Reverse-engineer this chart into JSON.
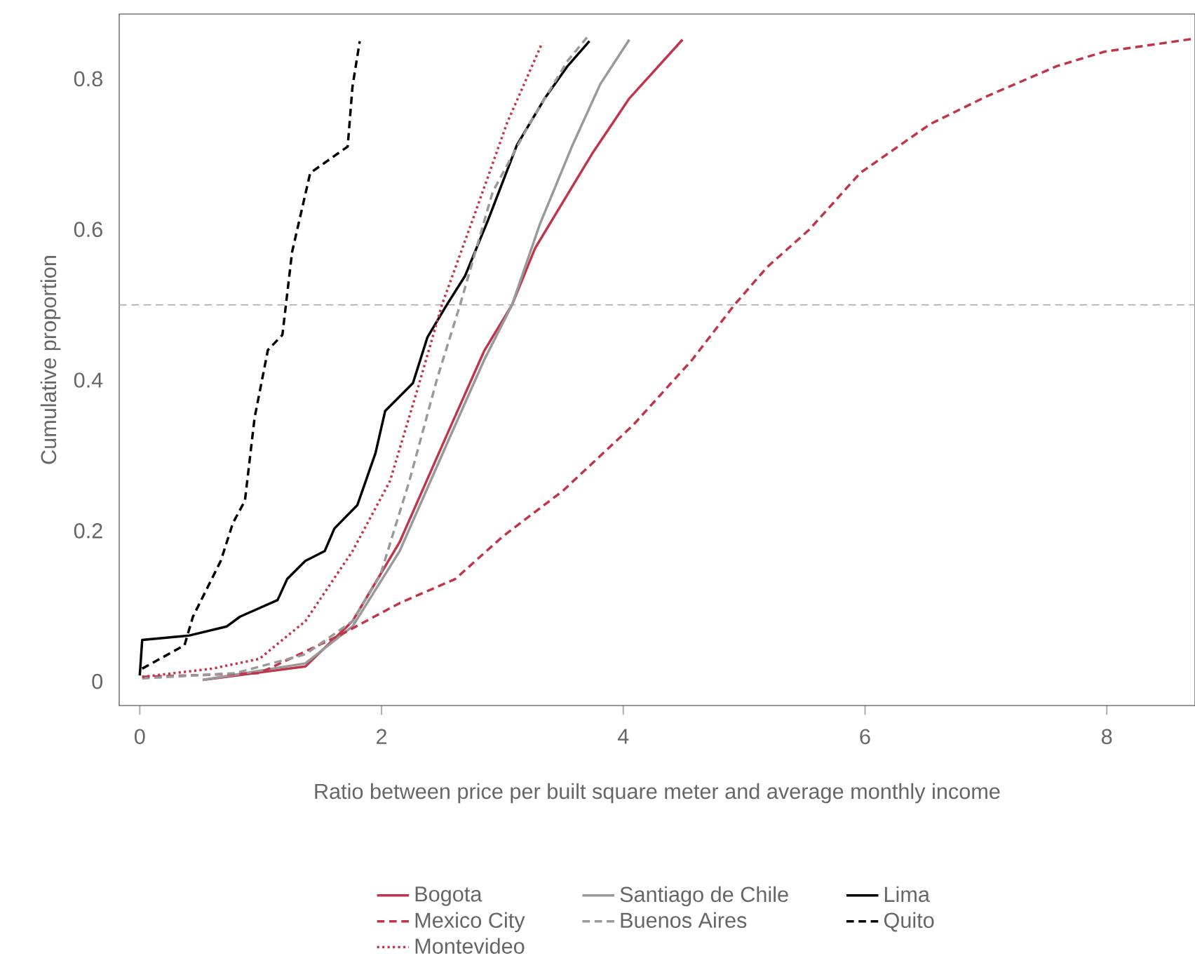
{
  "chart_data": {
    "type": "line",
    "xlabel": "Ratio between price per built square meter and average monthly income",
    "ylabel": "Cumulative proportion",
    "xlim": [
      -0.17,
      8.73
    ],
    "ylim": [
      -0.032,
      0.886
    ],
    "xticks": [
      0,
      2,
      4,
      6,
      8
    ],
    "yticks": [
      0,
      0.2,
      0.4,
      0.6,
      0.8
    ],
    "legend": "bottom",
    "grid": false,
    "ref_lines": [
      {
        "axis": "y",
        "value": 0.5,
        "color": "#aaaaaa",
        "line_style": "dashed"
      }
    ],
    "series": [
      {
        "name": "Bogota",
        "color": "#c0354a",
        "line_style": "solid",
        "x": [
          0.52,
          1.37,
          1.76,
          2.15,
          2.54,
          2.85,
          3.08,
          3.27,
          3.74,
          4.05,
          4.49
        ],
        "values": [
          0.002,
          0.02,
          0.08,
          0.185,
          0.327,
          0.439,
          0.5,
          0.575,
          0.7,
          0.774,
          0.852
        ]
      },
      {
        "name": "Santiago de Chile",
        "color": "#999999",
        "line_style": "solid",
        "x": [
          0.52,
          1.37,
          1.76,
          2.15,
          2.54,
          2.85,
          3.08,
          3.31,
          3.58,
          3.81,
          4.05
        ],
        "values": [
          0.002,
          0.024,
          0.073,
          0.173,
          0.315,
          0.427,
          0.5,
          0.607,
          0.712,
          0.793,
          0.852
        ]
      },
      {
        "name": "Lima",
        "color": "#000000",
        "line_style": "solid",
        "x": [
          0,
          0.02,
          0.41,
          0.72,
          0.83,
          1.14,
          1.22,
          1.37,
          1.53,
          1.61,
          1.8,
          1.95,
          2.03,
          2.26,
          2.38,
          2.54,
          2.69,
          2.88,
          3.12,
          3.35,
          3.54,
          3.72
        ],
        "values": [
          0.008,
          0.055,
          0.061,
          0.073,
          0.086,
          0.108,
          0.136,
          0.16,
          0.173,
          0.203,
          0.234,
          0.303,
          0.359,
          0.396,
          0.457,
          0.5,
          0.538,
          0.612,
          0.712,
          0.774,
          0.817,
          0.85
        ]
      },
      {
        "name": "Mexico City",
        "color": "#c0354a",
        "line_style": "dashed",
        "x": [
          0.02,
          0.99,
          1.65,
          2.15,
          2.61,
          3.0,
          3.5,
          4.08,
          4.57,
          4.92,
          5.19,
          5.54,
          5.96,
          6.54,
          7.01,
          7.59,
          7.98,
          8.71
        ],
        "values": [
          0.006,
          0.011,
          0.061,
          0.104,
          0.136,
          0.192,
          0.253,
          0.34,
          0.427,
          0.5,
          0.55,
          0.6,
          0.675,
          0.74,
          0.777,
          0.817,
          0.836,
          0.853
        ]
      },
      {
        "name": "Buenos Aires",
        "color": "#999999",
        "line_style": "dashed",
        "x": [
          0.02,
          0.79,
          1.37,
          1.76,
          1.99,
          2.23,
          2.46,
          2.65,
          2.92,
          3.23,
          3.54,
          3.7
        ],
        "values": [
          0.004,
          0.011,
          0.036,
          0.08,
          0.141,
          0.266,
          0.402,
          0.5,
          0.65,
          0.742,
          0.824,
          0.855
        ]
      },
      {
        "name": "Quito",
        "color": "#000000",
        "line_style": "dashed",
        "x": [
          0.02,
          0.37,
          0.44,
          0.67,
          0.77,
          0.87,
          0.95,
          1.06,
          1.18,
          1.26,
          1.41,
          1.72,
          1.76,
          1.82
        ],
        "values": [
          0.017,
          0.048,
          0.086,
          0.16,
          0.21,
          0.24,
          0.35,
          0.44,
          0.46,
          0.57,
          0.675,
          0.71,
          0.79,
          0.85
        ]
      },
      {
        "name": "Montevideo",
        "color": "#c0354a",
        "line_style": "dotted",
        "x": [
          0.02,
          0.6,
          0.99,
          1.37,
          1.76,
          2.07,
          2.3,
          2.5,
          2.77,
          3.04,
          3.33
        ],
        "values": [
          0.006,
          0.017,
          0.03,
          0.08,
          0.173,
          0.266,
          0.389,
          0.5,
          0.62,
          0.742,
          0.848
        ]
      }
    ]
  }
}
